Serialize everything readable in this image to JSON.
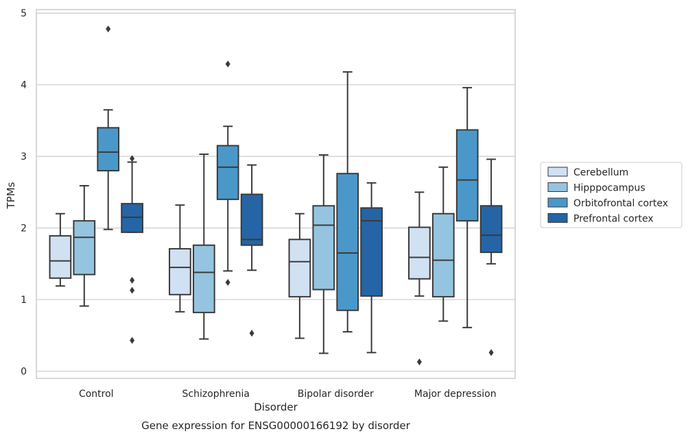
{
  "chart_data": {
    "type": "box",
    "title": "",
    "caption": "Gene expression for ENSG00000166192 by disorder",
    "xlabel": "Disorder",
    "ylabel": "TPMs",
    "ylim": [
      -0.1,
      5.05
    ],
    "yticks": [
      0,
      1,
      2,
      3,
      4,
      5
    ],
    "grid": "horizontal",
    "legend_position": "right",
    "categories": [
      "Control",
      "Schizophrenia",
      "Bipolar disorder",
      "Major depression"
    ],
    "series": [
      {
        "name": "Cerebellum",
        "color": "#d0e1f2",
        "boxes": [
          {
            "min": 1.19,
            "q1": 1.3,
            "median": 1.54,
            "q3": 1.89,
            "max": 2.2,
            "outliers": []
          },
          {
            "min": 0.83,
            "q1": 1.07,
            "median": 1.45,
            "q3": 1.71,
            "max": 2.32,
            "outliers": []
          },
          {
            "min": 0.46,
            "q1": 1.04,
            "median": 1.53,
            "q3": 1.84,
            "max": 2.2,
            "outliers": []
          },
          {
            "min": 1.05,
            "q1": 1.29,
            "median": 1.59,
            "q3": 2.01,
            "max": 2.5,
            "outliers": [
              0.13
            ]
          }
        ]
      },
      {
        "name": "Hipppocampus",
        "color": "#94c4df",
        "boxes": [
          {
            "min": 0.91,
            "q1": 1.35,
            "median": 1.87,
            "q3": 2.1,
            "max": 2.59,
            "outliers": []
          },
          {
            "min": 0.45,
            "q1": 0.82,
            "median": 1.38,
            "q3": 1.76,
            "max": 3.03,
            "outliers": []
          },
          {
            "min": 0.25,
            "q1": 1.14,
            "median": 2.04,
            "q3": 2.31,
            "max": 3.02,
            "outliers": []
          },
          {
            "min": 0.7,
            "q1": 1.04,
            "median": 1.55,
            "q3": 2.2,
            "max": 2.85,
            "outliers": []
          }
        ]
      },
      {
        "name": "Orbitofrontal cortex",
        "color": "#4a98c9",
        "boxes": [
          {
            "min": 1.98,
            "q1": 2.8,
            "median": 3.06,
            "q3": 3.4,
            "max": 3.65,
            "outliers": [
              4.78
            ]
          },
          {
            "min": 1.4,
            "q1": 2.4,
            "median": 2.85,
            "q3": 3.15,
            "max": 3.42,
            "outliers": [
              4.29,
              1.24
            ]
          },
          {
            "min": 0.55,
            "q1": 0.85,
            "median": 1.65,
            "q3": 2.76,
            "max": 4.18,
            "outliers": []
          },
          {
            "min": 0.61,
            "q1": 2.1,
            "median": 2.67,
            "q3": 3.37,
            "max": 3.96,
            "outliers": []
          }
        ]
      },
      {
        "name": "Prefrontal cortex",
        "color": "#2565a6",
        "boxes": [
          {
            "min": 1.94,
            "q1": 1.94,
            "median": 2.15,
            "q3": 2.34,
            "max": 2.92,
            "outliers": [
              2.97,
              1.27,
              1.13,
              0.43
            ]
          },
          {
            "min": 1.41,
            "q1": 1.76,
            "median": 1.84,
            "q3": 2.47,
            "max": 2.88,
            "outliers": [
              0.53
            ]
          },
          {
            "min": 0.26,
            "q1": 1.05,
            "median": 2.1,
            "q3": 2.28,
            "max": 2.63,
            "outliers": []
          },
          {
            "min": 1.5,
            "q1": 1.66,
            "median": 1.9,
            "q3": 2.31,
            "max": 2.96,
            "outliers": [
              0.26
            ]
          }
        ]
      }
    ]
  }
}
